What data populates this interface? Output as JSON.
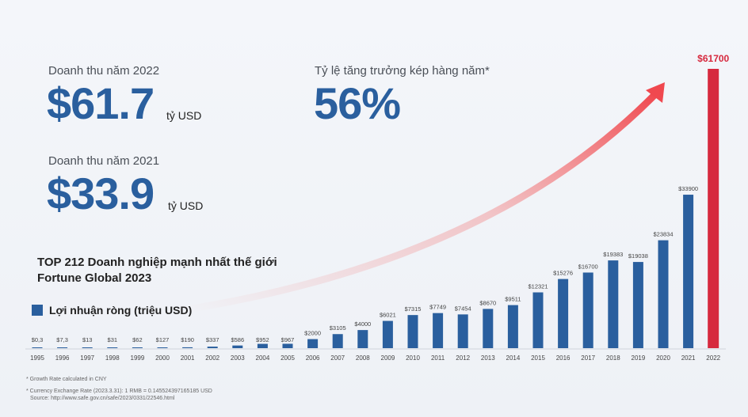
{
  "stats": {
    "rev2022_label": "Doanh thu năm 2022",
    "rev2022_value": "$61.7",
    "rev2022_unit": "tỷ USD",
    "cagr_label": "Tỷ lệ tăng trưởng kép hàng năm*",
    "cagr_value": "56%",
    "rev2021_label": "Doanh thu năm 2021",
    "rev2021_value": "$33.9",
    "rev2021_unit": "tỷ USD"
  },
  "title_line1": "TOP 212 Doanh nghiệp mạnh nhất thế giới",
  "title_line2": "Fortune Global 2023",
  "legend_label": "Lợi nhuận ròng (triệu USD)",
  "footnotes": {
    "growth": "* Growth Rate calculated in CNY",
    "fx": "* Currency Exchange Rate (2023.3.31): 1 RMB = 0.145524397165185 USD",
    "source": "Source: http://www.safe.gov.cn/safe/2023/0331/22546.html"
  },
  "colors": {
    "bar": "#2a5f9e",
    "highlight": "#d6293e",
    "accent": "#2a5f9e"
  },
  "chart_data": {
    "type": "bar",
    "title": "TOP 212 Doanh nghiệp mạnh nhất thế giới Fortune Global 2023",
    "series_name": "Lợi nhuận ròng (triệu USD)",
    "categories": [
      "1995",
      "1996",
      "1997",
      "1998",
      "1999",
      "2000",
      "2001",
      "2002",
      "2003",
      "2004",
      "2005",
      "2006",
      "2007",
      "2008",
      "2009",
      "2010",
      "2011",
      "2012",
      "2013",
      "2014",
      "2015",
      "2016",
      "2017",
      "2018",
      "2019",
      "2020",
      "2021",
      "2022"
    ],
    "values": [
      0.3,
      7.3,
      13,
      31,
      62,
      127,
      190,
      337,
      586,
      952,
      967,
      2000,
      3105,
      4000,
      6021,
      7315,
      7749,
      7454,
      8670,
      9511,
      12321,
      15276,
      16700,
      19383,
      19038,
      23834,
      33900,
      61700
    ],
    "labels": [
      "$0,3",
      "$7,3",
      "$13",
      "$31",
      "$62",
      "$127",
      "$190",
      "$337",
      "$586",
      "$952",
      "$967",
      "$2000",
      "$3105",
      "$4000",
      "$6021",
      "$7315",
      "$7749",
      "$7454",
      "$8670",
      "$9511",
      "$12321",
      "$15276",
      "$16700",
      "$19383",
      "$19038",
      "$23834",
      "$33900",
      "$61700"
    ],
    "highlight_index": 27,
    "ylim": [
      0,
      61700
    ],
    "xlabel": "",
    "ylabel": "",
    "grid": false
  }
}
